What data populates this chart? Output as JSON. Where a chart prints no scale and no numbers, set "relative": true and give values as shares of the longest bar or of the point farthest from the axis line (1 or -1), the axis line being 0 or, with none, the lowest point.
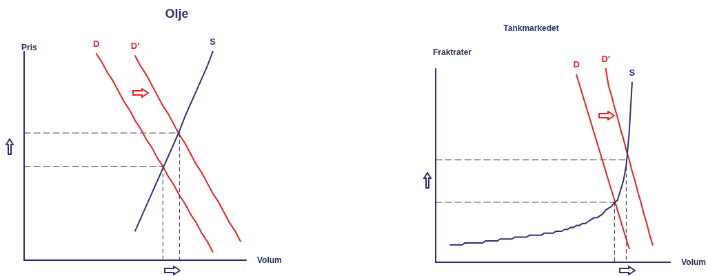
{
  "chart_data": [
    {
      "type": "line",
      "title": "Olje",
      "xlabel": "Volum",
      "ylabel": "Pris",
      "relative": true,
      "grid": false,
      "legend": false,
      "marker": "none",
      "line_style": "solid",
      "categories": [
        null,
        null,
        null,
        null,
        null,
        null,
        null,
        null,
        null,
        null,
        null,
        null,
        null,
        null,
        null,
        null,
        null,
        null,
        null,
        null,
        null,
        null,
        null,
        null,
        null,
        null,
        null,
        null,
        null,
        null,
        null,
        null,
        null,
        null,
        null,
        null,
        null,
        null,
        null,
        null,
        null
      ],
      "series": [
        {
          "name": "D",
          "color": "#ed1c24",
          "values": [
            null,
            null,
            null,
            null,
            null,
            null,
            null,
            null,
            null,
            null,
            null,
            null,
            null,
            0.99,
            0.95,
            0.9,
            0.86,
            0.81,
            0.76,
            0.72,
            0.67,
            0.63,
            0.58,
            0.54,
            0.49,
            0.45,
            0.4,
            0.36,
            0.31,
            0.27,
            0.22,
            0.18,
            0.13,
            0.09,
            0.04,
            null,
            null,
            null,
            null,
            null,
            null
          ]
        },
        {
          "name": "D'",
          "color": "#ed1c24",
          "values": [
            null,
            null,
            null,
            null,
            null,
            null,
            null,
            null,
            null,
            null,
            null,
            null,
            null,
            null,
            null,
            null,
            null,
            null,
            null,
            null,
            0.98,
            0.93,
            0.89,
            0.84,
            0.79,
            0.74,
            0.7,
            0.65,
            0.6,
            0.56,
            0.51,
            0.46,
            0.42,
            0.37,
            0.32,
            0.28,
            0.23,
            0.18,
            0.14,
            0.09,
            null
          ]
        },
        {
          "name": "S",
          "color": "#2b3173",
          "values": [
            null,
            null,
            null,
            null,
            null,
            null,
            null,
            null,
            null,
            null,
            null,
            null,
            null,
            null,
            null,
            null,
            null,
            null,
            null,
            null,
            0.14,
            0.2,
            0.26,
            0.32,
            0.38,
            0.44,
            0.5,
            0.56,
            0.62,
            0.69,
            0.75,
            0.81,
            0.87,
            0.93,
            1,
            null,
            null,
            null,
            null,
            null,
            null
          ]
        },
        {
          "color": "#333333",
          "line_style": "dashed",
          "values": [
            0.61,
            0.61,
            0.61,
            0.61,
            0.61,
            0.61,
            0.61,
            0.61,
            0.61,
            0.61,
            0.61,
            0.61,
            0.61,
            0.61,
            0.61,
            0.61,
            0.61,
            0.61,
            0.61,
            0.61,
            0.61,
            0.61,
            0.61,
            0.61,
            0.61,
            0.61,
            0.61,
            0.61,
            0.61,
            null,
            null,
            null,
            null,
            null,
            null,
            null,
            null,
            null,
            null,
            null,
            null
          ]
        },
        {
          "color": "#333333",
          "line_style": "dashed",
          "values": [
            0.45,
            0.45,
            0.45,
            0.45,
            0.45,
            0.45,
            0.45,
            0.45,
            0.45,
            0.45,
            0.45,
            0.45,
            0.45,
            0.45,
            0.45,
            0.45,
            0.45,
            0.45,
            0.45,
            0.45,
            0.45,
            0.45,
            0.45,
            0.45,
            0.45,
            0.45,
            null,
            null,
            null,
            null,
            null,
            null,
            null,
            null,
            null,
            null,
            null,
            null,
            null,
            null,
            null
          ]
        }
      ]
    },
    {
      "type": "line",
      "title": "Tankmarkedet",
      "xlabel": "Volum",
      "ylabel": "Fraktrater",
      "relative": true,
      "grid": false,
      "legend": false,
      "marker": "none",
      "line_style": "solid",
      "categories": [
        null,
        null,
        null,
        null,
        null,
        null,
        null,
        null,
        null,
        null,
        null,
        null,
        null,
        null,
        null,
        null,
        null,
        null,
        null,
        null,
        null,
        null,
        null,
        null,
        null,
        null,
        null,
        null,
        null,
        null,
        null,
        null,
        null,
        null,
        null,
        null,
        null,
        null,
        null,
        null,
        null,
        null,
        null,
        null,
        null,
        null,
        null,
        null,
        null,
        null,
        null,
        null,
        null,
        null,
        null,
        null,
        null,
        null,
        null,
        null,
        null,
        null,
        null,
        null,
        null,
        null,
        null,
        null,
        null,
        null,
        null,
        null,
        null,
        null,
        null,
        null,
        null,
        null,
        null,
        null,
        null
      ],
      "series": [
        {
          "name": "D",
          "color": "#ed1c24",
          "values": [
            null,
            null,
            null,
            null,
            null,
            null,
            null,
            null,
            null,
            null,
            null,
            null,
            null,
            null,
            null,
            null,
            null,
            null,
            null,
            null,
            null,
            null,
            null,
            null,
            null,
            null,
            null,
            null,
            null,
            null,
            null,
            null,
            null,
            null,
            null,
            null,
            null,
            null,
            null,
            null,
            null,
            null,
            null,
            null,
            null,
            null,
            null,
            null,
            0.97,
            0.92,
            0.87,
            0.82,
            0.77,
            0.72,
            0.67,
            0.62,
            0.57,
            0.52,
            0.47,
            0.42,
            0.37,
            0.32,
            0.27,
            0.22,
            0.17,
            0.12,
            0.07,
            null,
            null,
            null,
            null,
            null,
            null,
            null,
            null,
            null,
            null,
            null,
            null,
            null,
            null
          ]
        },
        {
          "name": "D'",
          "color": "#ed1c24",
          "values": [
            null,
            null,
            null,
            null,
            null,
            null,
            null,
            null,
            null,
            null,
            null,
            null,
            null,
            null,
            null,
            null,
            null,
            null,
            null,
            null,
            null,
            null,
            null,
            null,
            null,
            null,
            null,
            null,
            null,
            null,
            null,
            null,
            null,
            null,
            null,
            null,
            null,
            null,
            null,
            null,
            null,
            null,
            null,
            null,
            null,
            null,
            null,
            null,
            null,
            null,
            null,
            null,
            null,
            null,
            null,
            null,
            null,
            null,
            1,
            0.91,
            0.86,
            0.8,
            0.75,
            0.69,
            0.64,
            0.58,
            0.53,
            0.47,
            0.42,
            0.36,
            0.31,
            0.25,
            0.2,
            0.14,
            0.09,
            null,
            null,
            null,
            null,
            null,
            null
          ]
        },
        {
          "name": "S",
          "color": "#2b3173",
          "values": [
            null,
            null,
            null,
            null,
            null,
            0.09,
            0.09,
            0.09,
            0.09,
            0.09,
            0.1,
            0.1,
            0.1,
            0.1,
            0.1,
            0.1,
            0.1,
            0.11,
            0.11,
            0.11,
            0.11,
            0.11,
            0.12,
            0.12,
            0.12,
            0.12,
            0.12,
            0.13,
            0.13,
            0.13,
            0.13,
            0.13,
            0.14,
            0.14,
            0.14,
            0.14,
            0.14,
            0.15,
            0.15,
            0.15,
            0.15,
            0.16,
            0.16,
            0.16,
            0.17,
            0.17,
            0.18,
            0.18,
            0.19,
            0.19,
            0.2,
            0.2,
            0.21,
            0.22,
            0.23,
            0.23,
            0.24,
            0.25,
            0.27,
            0.28,
            0.29,
            0.31,
            0.32,
            0.37,
            0.42,
            0.5,
            0.67,
            0.93,
            null,
            null,
            null,
            null,
            null,
            null,
            null,
            null,
            null,
            null,
            null,
            null,
            null
          ]
        },
        {
          "color": "#333333",
          "line_style": "dashed",
          "values": [
            0.53,
            0.53,
            0.53,
            0.53,
            0.53,
            0.53,
            0.53,
            0.53,
            0.53,
            0.53,
            0.53,
            0.53,
            0.53,
            0.53,
            0.53,
            0.53,
            0.53,
            0.53,
            0.53,
            0.53,
            0.53,
            0.53,
            0.53,
            0.53,
            0.53,
            0.53,
            0.53,
            0.53,
            0.53,
            0.53,
            0.53,
            0.53,
            0.53,
            0.53,
            0.53,
            0.53,
            0.53,
            0.53,
            0.53,
            0.53,
            0.53,
            0.53,
            0.53,
            0.53,
            0.53,
            0.53,
            0.53,
            0.53,
            0.53,
            0.53,
            0.53,
            0.53,
            0.53,
            0.53,
            0.53,
            0.53,
            0.53,
            0.53,
            0.53,
            0.53,
            0.53,
            0.53,
            0.53,
            0.53,
            0.53,
            0.53,
            null,
            null,
            null,
            null,
            null,
            null,
            null,
            null,
            null,
            null,
            null,
            null,
            null,
            null,
            null
          ]
        },
        {
          "color": "#333333",
          "line_style": "dashed",
          "values": [
            0.31,
            0.31,
            0.31,
            0.31,
            0.31,
            0.31,
            0.31,
            0.31,
            0.31,
            0.31,
            0.31,
            0.31,
            0.31,
            0.31,
            0.31,
            0.31,
            0.31,
            0.31,
            0.31,
            0.31,
            0.31,
            0.31,
            0.31,
            0.31,
            0.31,
            0.31,
            0.31,
            0.31,
            0.31,
            0.31,
            0.31,
            0.31,
            0.31,
            0.31,
            0.31,
            0.31,
            0.31,
            0.31,
            0.31,
            0.31,
            0.31,
            0.31,
            0.31,
            0.31,
            0.31,
            0.31,
            0.31,
            0.31,
            0.31,
            0.31,
            0.31,
            0.31,
            0.31,
            0.31,
            0.31,
            0.31,
            0.31,
            0.31,
            0.31,
            0.31,
            0.31,
            0.31,
            null,
            null,
            null,
            null,
            null,
            null,
            null,
            null,
            null,
            null,
            null,
            null,
            null,
            null,
            null,
            null,
            null,
            null,
            null
          ]
        }
      ]
    }
  ]
}
